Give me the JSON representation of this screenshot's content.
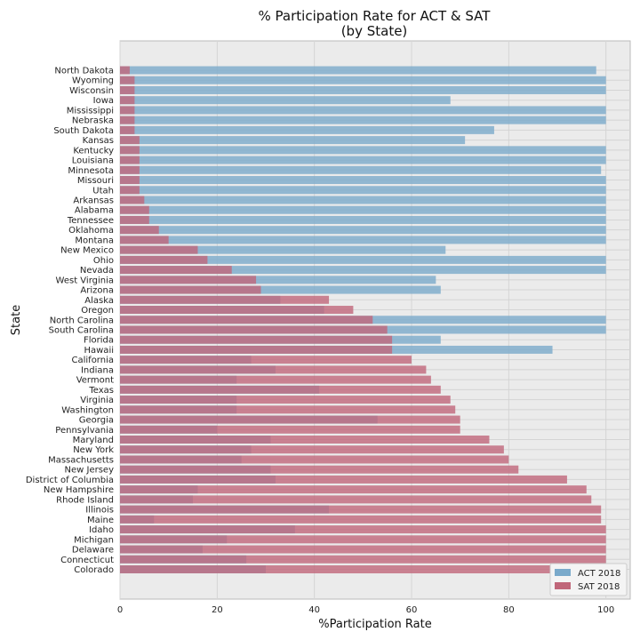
{
  "chart_data": {
    "type": "bar",
    "orientation": "horizontal",
    "title": "% Participation Rate for ACT & SAT",
    "subtitle": "(by State)",
    "xlabel": "%Participation Rate",
    "ylabel": "State",
    "xlim": [
      0,
      105
    ],
    "xticks": [
      0,
      20,
      40,
      60,
      80,
      100
    ],
    "grid": true,
    "legend_position": "bottom-right",
    "categories": [
      "North Dakota",
      "Wyoming",
      "Wisconsin",
      "Iowa",
      "Mississippi",
      "Nebraska",
      "South Dakota",
      "Kansas",
      "Kentucky",
      "Louisiana",
      "Minnesota",
      "Missouri",
      "Utah",
      "Arkansas",
      "Alabama",
      "Tennessee",
      "Oklahoma",
      "Montana",
      "New Mexico",
      "Ohio",
      "Nevada",
      "West Virginia",
      "Arizona",
      "Alaska",
      "Oregon",
      "North Carolina",
      "South Carolina",
      "Florida",
      "Hawaii",
      "California",
      "Indiana",
      "Vermont",
      "Texas",
      "Virginia",
      "Washington",
      "Georgia",
      "Pennsylvania",
      "Maryland",
      "New York",
      "Massachusetts",
      "New Jersey",
      "District of Columbia",
      "New Hampshire",
      "Rhode Island",
      "Illinois",
      "Maine",
      "Idaho",
      "Michigan",
      "Delaware",
      "Connecticut",
      "Colorado"
    ],
    "series": [
      {
        "name": "ACT 2018",
        "color": "#7aaacb",
        "values": [
          98,
          100,
          100,
          68,
          100,
          100,
          77,
          71,
          100,
          100,
          99,
          100,
          100,
          100,
          100,
          100,
          100,
          100,
          67,
          100,
          100,
          65,
          66,
          33,
          42,
          100,
          100,
          66,
          89,
          27,
          32,
          24,
          41,
          24,
          24,
          53,
          20,
          31,
          27,
          25,
          31,
          32,
          16,
          15,
          43,
          7,
          36,
          22,
          17,
          26,
          30
        ]
      },
      {
        "name": "SAT 2018",
        "color": "#c0677a",
        "values": [
          2,
          3,
          3,
          3,
          3,
          3,
          3,
          4,
          4,
          4,
          4,
          4,
          4,
          5,
          6,
          6,
          8,
          10,
          16,
          18,
          23,
          28,
          29,
          43,
          48,
          52,
          55,
          56,
          56,
          60,
          63,
          64,
          66,
          68,
          69,
          70,
          70,
          76,
          79,
          80,
          82,
          92,
          96,
          97,
          99,
          99,
          100,
          100,
          100,
          100,
          100
        ]
      }
    ]
  }
}
